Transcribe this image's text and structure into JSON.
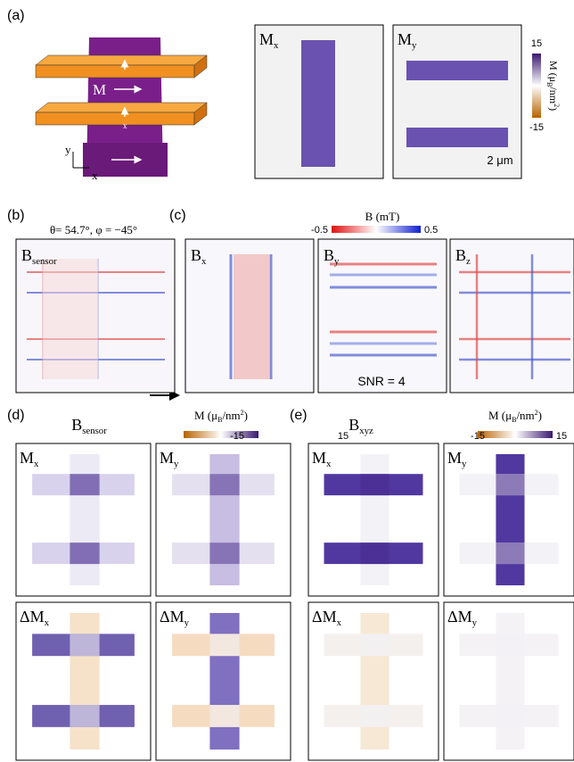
{
  "panel_a": {
    "label": "(a)",
    "magnetization": "M",
    "axis_y": "y",
    "axis_x": "x",
    "layer_x": "x",
    "maps": [
      {
        "main": "M",
        "sub": "x"
      },
      {
        "main": "M",
        "sub": "y"
      }
    ],
    "colorbar": {
      "max": "15",
      "min": "-15",
      "label": {
        "pre": "M (μ",
        "sub": "B",
        "mid": "/nm",
        "sup": "2",
        "post": ")"
      }
    },
    "scale_bar": "2 μm"
  },
  "panel_b": {
    "label": "(b)",
    "angles": "θ= 54.7°, φ = −45°",
    "map": {
      "main": "B",
      "sub": "sensor"
    }
  },
  "panel_c": {
    "label": "(c)",
    "colorbar": {
      "label": "B (mT)",
      "min": "-0.5",
      "max": "0.5"
    },
    "maps": [
      {
        "main": "B",
        "sub": "x"
      },
      {
        "main": "B",
        "sub": "y"
      },
      {
        "main": "B",
        "sub": "z"
      }
    ],
    "snr": "SNR = 4"
  },
  "panel_d": {
    "label": "(d)",
    "source": {
      "main": "B",
      "sub": "sensor"
    },
    "colorbar": {
      "max": "15",
      "min": "-15",
      "label": {
        "pre": "M (μ",
        "sub": "B",
        "mid": "/nm",
        "sup": "2",
        "post": ")"
      }
    },
    "maps": [
      {
        "main": "M",
        "sub": "x"
      },
      {
        "main": "M",
        "sub": "y"
      },
      {
        "main": "ΔM",
        "sub": "x"
      },
      {
        "main": "ΔM",
        "sub": "y"
      }
    ]
  },
  "panel_e": {
    "label": "(e)",
    "source": {
      "main": "B",
      "sub": "xyz"
    },
    "colorbar": {
      "max": "15",
      "min": "-15",
      "label": {
        "pre": "M (μ",
        "sub": "B",
        "mid": "/nm",
        "sup": "2",
        "post": ")"
      }
    },
    "maps": [
      {
        "main": "M",
        "sub": "x"
      },
      {
        "main": "M",
        "sub": "y"
      },
      {
        "main": "ΔM",
        "sub": "x"
      },
      {
        "main": "ΔM",
        "sub": "y"
      }
    ]
  }
}
